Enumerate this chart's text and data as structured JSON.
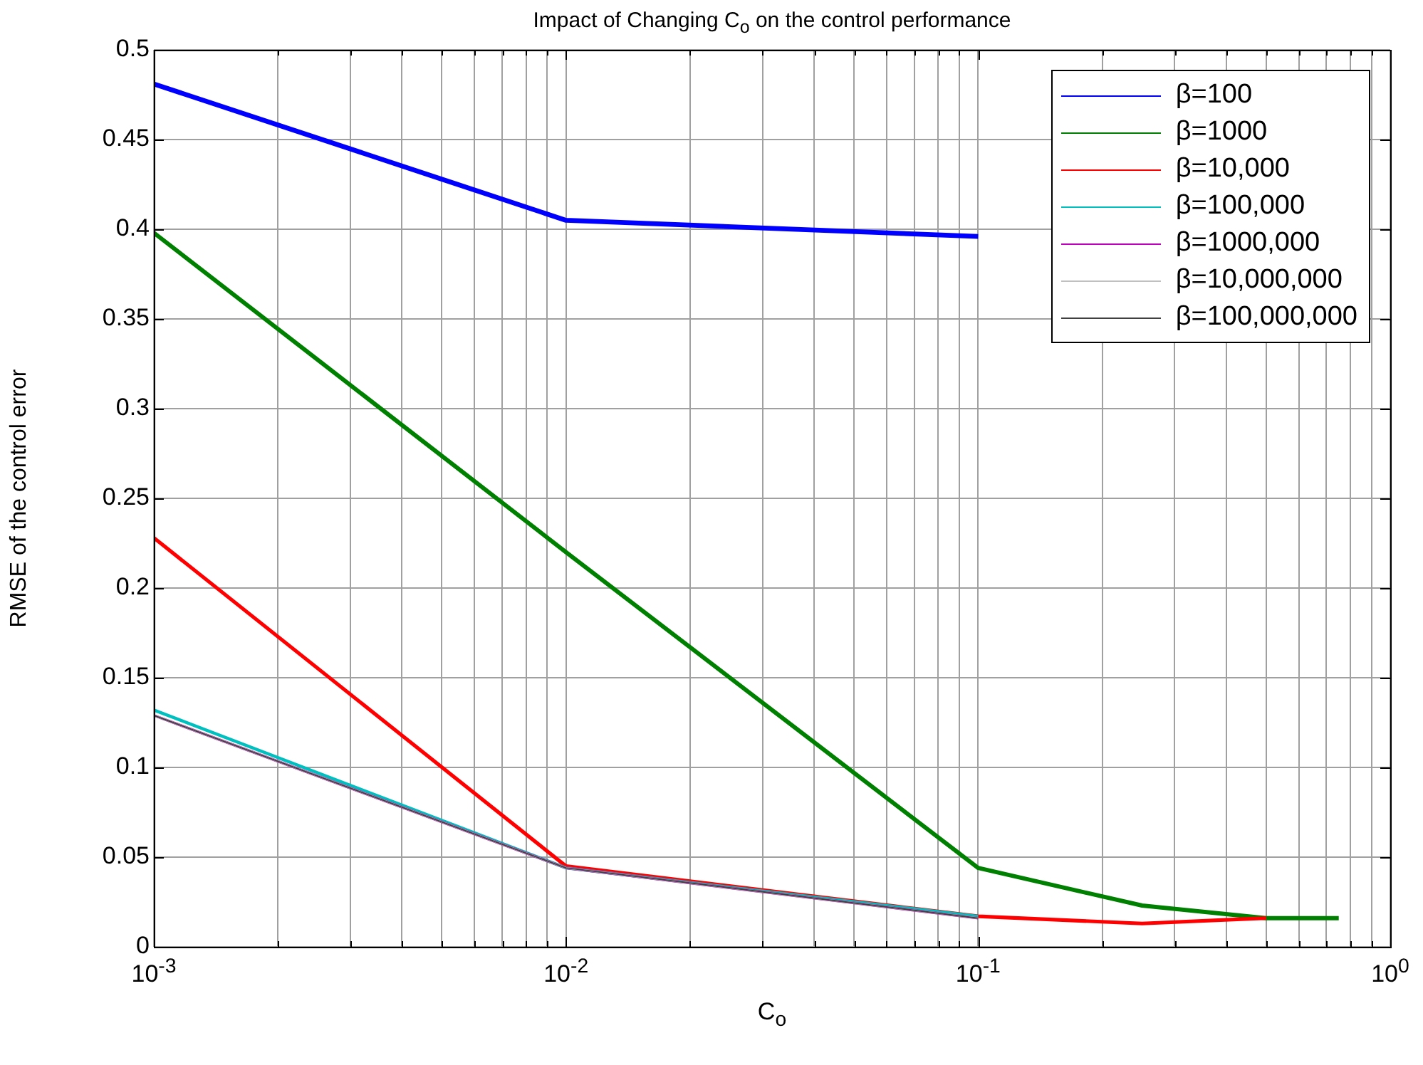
{
  "chart_data": {
    "type": "line",
    "title": "Impact of Changing C$_{o}$ on the control performance",
    "xlabel": "C$_{o}$",
    "ylabel": "RMSE of the control error",
    "x": [
      0.001,
      0.01,
      0.1,
      0.25,
      0.5,
      0.75
    ],
    "series": [
      {
        "name": "β=100",
        "color": "#0000ff",
        "values": [
          0.481,
          0.405,
          0.396,
          null,
          null,
          null
        ]
      },
      {
        "name": "β=1000",
        "color": "#008000",
        "values": [
          0.398,
          0.22,
          0.044,
          0.023,
          0.016,
          0.016
        ]
      },
      {
        "name": "β=10,000",
        "color": "#ff0000",
        "values": [
          0.228,
          0.045,
          0.017,
          0.013,
          0.016,
          null
        ]
      },
      {
        "name": "β=100,000",
        "color": "#00bfbf",
        "values": [
          0.132,
          0.044,
          0.017,
          null,
          null,
          null
        ]
      },
      {
        "name": "β=1000,000",
        "color": "#bf00bf",
        "values": [
          0.129,
          0.044,
          0.016,
          null,
          null,
          null
        ]
      },
      {
        "name": "β=10,000,000",
        "color": "#c0c0c0",
        "values": [
          0.129,
          0.044,
          0.016,
          null,
          null,
          null
        ]
      },
      {
        "name": "β=100,000,000",
        "color": "#404040",
        "values": [
          0.129,
          0.044,
          0.016,
          null,
          null,
          null
        ]
      }
    ],
    "log": "x",
    "xlim": [
      0.001,
      1
    ],
    "ylim": [
      0,
      0.5
    ],
    "xticks": [
      {
        "value": 0.001,
        "label": "10$^{-3}$"
      },
      {
        "value": 0.002,
        "label": null
      },
      {
        "value": 0.003,
        "label": null
      },
      {
        "value": 0.004,
        "label": null
      },
      {
        "value": 0.005,
        "label": null
      },
      {
        "value": 0.006,
        "label": null
      },
      {
        "value": 0.007,
        "label": null
      },
      {
        "value": 0.008,
        "label": null
      },
      {
        "value": 0.009,
        "label": null
      },
      {
        "value": 0.01,
        "label": "10$^{-2}$"
      },
      {
        "value": 0.02,
        "label": null
      },
      {
        "value": 0.03,
        "label": null
      },
      {
        "value": 0.04,
        "label": null
      },
      {
        "value": 0.05,
        "label": null
      },
      {
        "value": 0.06,
        "label": null
      },
      {
        "value": 0.07,
        "label": null
      },
      {
        "value": 0.08,
        "label": null
      },
      {
        "value": 0.09,
        "label": null
      },
      {
        "value": 0.1,
        "label": "10$^{-1}$"
      },
      {
        "value": 0.2,
        "label": null
      },
      {
        "value": 0.3,
        "label": null
      },
      {
        "value": 0.4,
        "label": null
      },
      {
        "value": 0.5,
        "label": null
      },
      {
        "value": 0.6,
        "label": null
      },
      {
        "value": 0.7,
        "label": null
      },
      {
        "value": 0.8,
        "label": null
      },
      {
        "value": 0.9,
        "label": null
      },
      {
        "value": 1,
        "label": "10$^{0}$"
      }
    ],
    "yticks": [
      0,
      0.05,
      0.1,
      0.15,
      0.2,
      0.25,
      0.3,
      0.35,
      0.4,
      0.45,
      0.5
    ],
    "grid": true,
    "legend": "top right",
    "marker": "none",
    "line_style": "solid"
  }
}
